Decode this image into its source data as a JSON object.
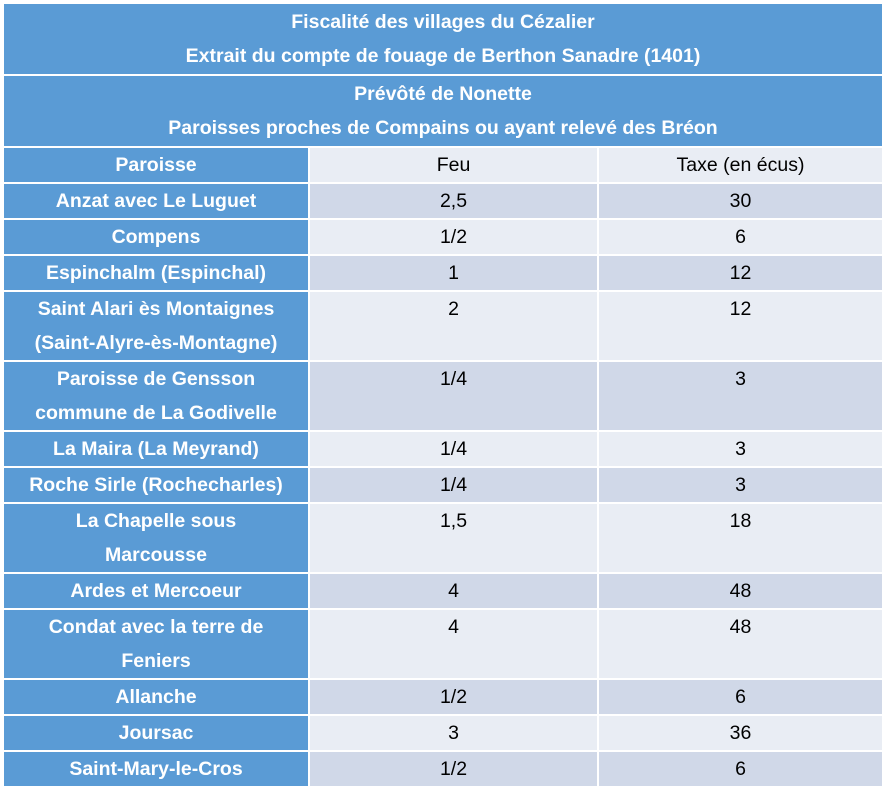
{
  "title": {
    "line1": "Fiscalité des villages du Cézalier",
    "line2": "Extrait du compte de fouage de Berthon Sanadre (1401)"
  },
  "subtitle": {
    "line1": "Prévôté de Nonette",
    "line2": "Paroisses proches de Compains ou ayant relevé des Bréon"
  },
  "columns": {
    "paroisse": "Paroisse",
    "feu": "Feu",
    "taxe": "Taxe (en écus)"
  },
  "rows": [
    {
      "name1": "Anzat avec Le Luguet",
      "name2": "",
      "feu": "2,5",
      "taxe": "30"
    },
    {
      "name1": "Compens",
      "name2": "",
      "feu": "1/2",
      "taxe": "6"
    },
    {
      "name1": "Espinchalm (Espinchal)",
      "name2": "",
      "feu": "1",
      "taxe": "12"
    },
    {
      "name1": "Saint Alari ès Montaignes",
      "name2": "(Saint-Alyre-ès-Montagne)",
      "feu": "2",
      "taxe": "12"
    },
    {
      "name1": "Paroisse de Gensson",
      "name2": "commune de La Godivelle",
      "feu": "1/4",
      "taxe": "3"
    },
    {
      "name1": "La Maira (La Meyrand)",
      "name2": "",
      "feu": "1/4",
      "taxe": "3"
    },
    {
      "name1": "Roche Sirle (Rochecharles)",
      "name2": "",
      "feu": "1/4",
      "taxe": "3"
    },
    {
      "name1": "La Chapelle sous",
      "name2": "Marcousse",
      "feu": "1,5",
      "taxe": "18"
    },
    {
      "name1": "Ardes et Mercoeur",
      "name2": "",
      "feu": "4",
      "taxe": "48"
    },
    {
      "name1": "Condat avec la terre de",
      "name2": "Feniers",
      "feu": "4",
      "taxe": "48"
    },
    {
      "name1": "Allanche",
      "name2": "",
      "feu": "1/2",
      "taxe": "6"
    },
    {
      "name1": "Joursac",
      "name2": "",
      "feu": "3",
      "taxe": "36"
    },
    {
      "name1": "Saint-Mary-le-Cros",
      "name2": "",
      "feu": "1/2",
      "taxe": "6"
    }
  ]
}
